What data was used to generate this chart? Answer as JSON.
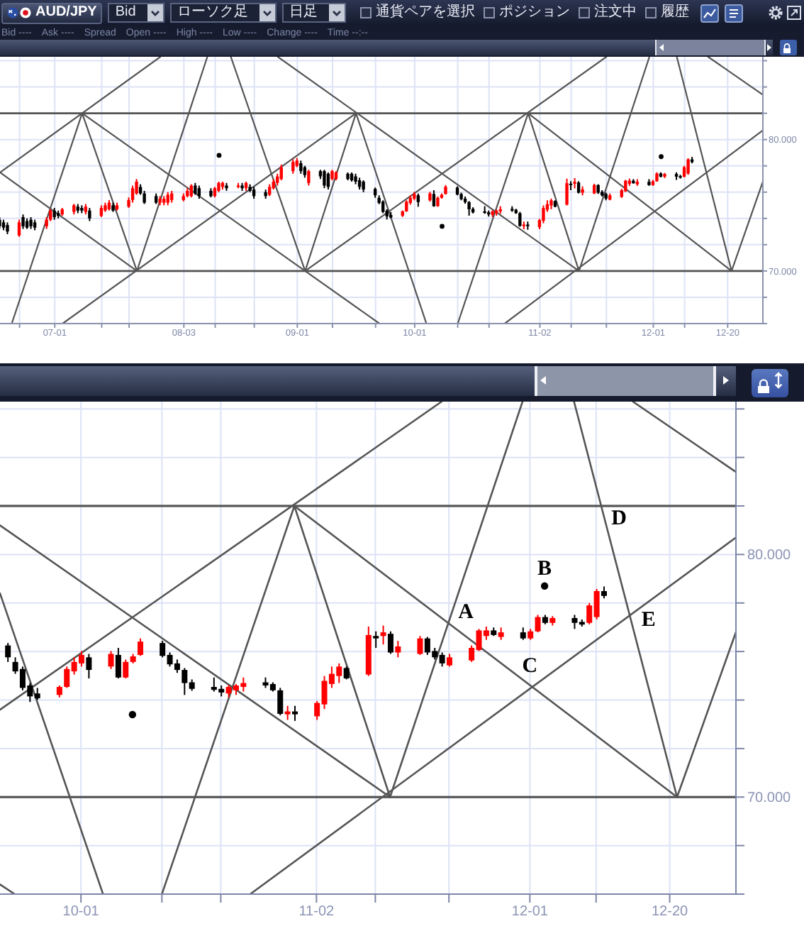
{
  "chart_data": [
    {
      "type": "candlestick",
      "annotations": [
        "AUD/JPY",
        "Bid",
        "ローソク足",
        "日足",
        "通貨ペアを選択",
        "ポジション",
        "注文中",
        "履歴",
        "Bid ----",
        "Ask ----",
        "Spread",
        "Open ----",
        "High ----",
        "Low ----",
        "Change ----",
        "Time --:--"
      ],
      "x": [
        "--06-17",
        "--06-18",
        "--06-19",
        "--06-22",
        "--06-23",
        "--06-24",
        "--06-25",
        "--06-26",
        "--06-29",
        "--06-30",
        "--07-01",
        "--07-02",
        "--07-03",
        "--07-06",
        "--07-07",
        "--07-08",
        "--07-09",
        "--07-10",
        "--07-13",
        "--07-14",
        "--07-15",
        "--07-16",
        "--07-17",
        "--07-20",
        "--07-21",
        "--07-22",
        "--07-23",
        "--07-24",
        "--07-27",
        "--07-28",
        "--07-29",
        "--07-30",
        "--07-31",
        "--08-03",
        "--08-04",
        "--08-05",
        "--08-06",
        "--08-07",
        "--08-10",
        "--08-11",
        "--08-12",
        "--08-13",
        "--08-14",
        "--08-17",
        "--08-18",
        "--08-19",
        "--08-20",
        "--08-21",
        "--08-24",
        "--08-25",
        "--08-26",
        "--08-27",
        "--08-28",
        "--08-31",
        "--09-01",
        "--09-02",
        "--09-03",
        "--09-04",
        "--09-07",
        "--09-08",
        "--09-09",
        "--09-10",
        "--09-11",
        "--09-14",
        "--09-15",
        "--09-16",
        "--09-17",
        "--09-18",
        "--09-21",
        "--09-22",
        "--09-23",
        "--09-24",
        "--09-25",
        "--09-28",
        "--09-29",
        "--09-30",
        "--10-01",
        "--10-02",
        "--10-05",
        "--10-06",
        "--10-07",
        "--10-08",
        "--10-09",
        "--10-12",
        "--10-13",
        "--10-14",
        "--10-15",
        "--10-16",
        "--10-19",
        "--10-20",
        "--10-21",
        "--10-22",
        "--10-23",
        "--10-26",
        "--10-27",
        "--10-28",
        "--10-29",
        "--10-30",
        "--11-02",
        "--11-03",
        "--11-04",
        "--11-05",
        "--11-06",
        "--11-09",
        "--11-10",
        "--11-11",
        "--11-12",
        "--11-13",
        "--11-16",
        "--11-17",
        "--11-18",
        "--11-19",
        "--11-20",
        "--11-23",
        "--11-24",
        "--11-25",
        "--11-26",
        "--11-27",
        "--11-30",
        "--12-01",
        "--12-02",
        "--12-03",
        "--12-04",
        "--12-07",
        "--12-08",
        "--12-09",
        "--12-10",
        "--12-11"
      ],
      "ohlc": [
        [
          73.9,
          74.1,
          73.2,
          73.4
        ],
        [
          73.7,
          73.9,
          73.1,
          73.3
        ],
        [
          73.5,
          73.7,
          72.8,
          73.0
        ],
        [
          72.7,
          73.9,
          72.6,
          73.7
        ],
        [
          74.1,
          74.3,
          73.2,
          73.4
        ],
        [
          73.8,
          74.0,
          73.2,
          73.3
        ],
        [
          73.9,
          74.1,
          73.2,
          73.4
        ],
        [
          73.7,
          73.9,
          73.1,
          73.3
        ],
        [
          73.4,
          74.1,
          73.2,
          73.9
        ],
        [
          73.9,
          74.7,
          73.8,
          74.6
        ],
        [
          74.6,
          74.8,
          73.9,
          74.1
        ],
        [
          74.4,
          74.6,
          74.0,
          74.2
        ],
        [
          74.3,
          74.8,
          74.2,
          74.7
        ],
        [
          74.5,
          75.1,
          74.3,
          75.0
        ],
        [
          74.9,
          75.1,
          74.4,
          74.6
        ],
        [
          74.8,
          75.0,
          74.4,
          74.6
        ],
        [
          74.5,
          75.1,
          74.3,
          74.9
        ],
        [
          74.6,
          74.8,
          73.8,
          74.0
        ],
        [
          74.2,
          75.0,
          74.1,
          74.8
        ],
        [
          74.6,
          75.2,
          74.5,
          75.0
        ],
        [
          74.7,
          75.4,
          74.6,
          75.2
        ],
        [
          75.0,
          75.2,
          74.5,
          74.6
        ],
        [
          74.7,
          75.2,
          74.6,
          75.0
        ],
        [
          74.9,
          75.6,
          74.8,
          75.4
        ],
        [
          75.4,
          76.5,
          75.2,
          76.3
        ],
        [
          75.9,
          77.0,
          75.8,
          76.8
        ],
        [
          76.4,
          76.6,
          75.8,
          75.9
        ],
        [
          75.9,
          76.1,
          75.1,
          75.2
        ],
        [
          75.7,
          75.9,
          75.1,
          75.2
        ],
        [
          75.2,
          75.7,
          75.0,
          75.5
        ],
        [
          75.2,
          75.7,
          75.0,
          75.5
        ],
        [
          75.2,
          76.0,
          75.0,
          75.8
        ],
        [
          75.4,
          76.1,
          75.2,
          75.9
        ],
        [
          75.4,
          75.9,
          75.3,
          75.7
        ],
        [
          75.7,
          76.3,
          75.6,
          76.1
        ],
        [
          75.7,
          76.6,
          75.6,
          76.5
        ],
        [
          76.5,
          76.7,
          75.8,
          75.9
        ],
        [
          76.3,
          76.5,
          75.5,
          75.7
        ],
        [
          76.1,
          76.3,
          75.6,
          75.7
        ],
        [
          75.7,
          76.4,
          75.6,
          76.3
        ],
        [
          76.1,
          76.8,
          76.0,
          76.7
        ],
        [
          76.4,
          76.8,
          76.2,
          76.7
        ],
        [
          76.5,
          76.7,
          76.1,
          76.3
        ],
        [
          76.4,
          76.7,
          76.3,
          76.5
        ],
        [
          76.5,
          76.7,
          76.1,
          76.3
        ],
        [
          76.3,
          76.8,
          76.1,
          76.7
        ],
        [
          76.4,
          76.6,
          76.0,
          76.1
        ],
        [
          76.2,
          76.4,
          75.5,
          75.7
        ],
        [
          76.0,
          76.2,
          75.5,
          75.7
        ],
        [
          75.8,
          76.6,
          75.7,
          76.4
        ],
        [
          76.3,
          77.0,
          76.2,
          76.8
        ],
        [
          76.7,
          77.4,
          76.5,
          77.2
        ],
        [
          77.0,
          78.1,
          76.9,
          77.9
        ],
        [
          77.6,
          78.5,
          77.4,
          78.3
        ],
        [
          78.0,
          78.6,
          77.9,
          78.4
        ],
        [
          78.2,
          78.4,
          77.4,
          77.6
        ],
        [
          77.9,
          78.0,
          77.1,
          77.3
        ],
        [
          76.7,
          77.7,
          76.5,
          77.6
        ],
        [
          77.6,
          77.7,
          77.0,
          77.2
        ],
        [
          77.6,
          77.7,
          76.3,
          76.5
        ],
        [
          77.4,
          77.5,
          76.2,
          76.4
        ],
        [
          77.0,
          77.7,
          76.9,
          77.6
        ],
        [
          77.0,
          77.6,
          76.9,
          77.5
        ],
        [
          77.4,
          77.5,
          76.9,
          77.0
        ],
        [
          77.4,
          77.5,
          76.8,
          76.9
        ],
        [
          77.2,
          77.4,
          76.6,
          76.8
        ],
        [
          76.9,
          77.1,
          76.2,
          76.4
        ],
        [
          76.8,
          76.9,
          76.0,
          76.2
        ],
        [
          76.25,
          76.35,
          75.57,
          75.76
        ],
        [
          75.57,
          75.76,
          75.08,
          75.18
        ],
        [
          75.28,
          75.38,
          74.4,
          74.5
        ],
        [
          74.6,
          74.7,
          73.92,
          74.15
        ],
        [
          74.27,
          74.5,
          74.01,
          74.07
        ],
        [
          74.21,
          74.6,
          74.11,
          74.54
        ],
        [
          74.54,
          75.38,
          74.5,
          75.28
        ],
        [
          75.18,
          75.76,
          75.05,
          75.57
        ],
        [
          75.51,
          76.02,
          75.38,
          75.86
        ],
        [
          75.76,
          75.9,
          74.89,
          75.24
        ],
        [
          75.38,
          76.02,
          75.28,
          75.9
        ],
        [
          75.86,
          76.15,
          74.89,
          74.93
        ],
        [
          74.93,
          75.67,
          74.89,
          75.57
        ],
        [
          75.57,
          75.9,
          75.51,
          75.8
        ],
        [
          75.86,
          76.54,
          75.82,
          76.41
        ],
        [
          76.35,
          76.44,
          75.76,
          75.82
        ],
        [
          75.86,
          75.96,
          75.38,
          75.47
        ],
        [
          75.51,
          75.67,
          75.12,
          75.24
        ],
        [
          75.24,
          75.32,
          74.21,
          74.7
        ],
        [
          74.73,
          74.85,
          74.38,
          74.46
        ],
        [
          74.54,
          74.93,
          74.35,
          74.42
        ],
        [
          74.46,
          74.6,
          74.15,
          74.31
        ],
        [
          74.27,
          74.62,
          74.11,
          74.54
        ],
        [
          74.4,
          74.66,
          74.21,
          74.6
        ],
        [
          74.54,
          74.93,
          74.35,
          74.7
        ],
        [
          74.73,
          74.93,
          74.5,
          74.6
        ],
        [
          74.66,
          74.73,
          74.35,
          74.4
        ],
        [
          74.4,
          74.5,
          73.37,
          73.43
        ],
        [
          73.41,
          73.76,
          73.18,
          73.53
        ],
        [
          73.53,
          73.76,
          73.14,
          73.41
        ],
        [
          73.33,
          73.96,
          73.18,
          73.88
        ],
        [
          73.82,
          74.99,
          73.63,
          74.79
        ],
        [
          74.66,
          75.38,
          74.5,
          75.08
        ],
        [
          74.99,
          75.51,
          74.7,
          75.38
        ],
        [
          75.32,
          75.38,
          74.85,
          74.89
        ],
        [
          75.05,
          77.03,
          74.99,
          76.68
        ],
        [
          76.64,
          76.83,
          76.15,
          76.54
        ],
        [
          76.64,
          77.07,
          76.29,
          76.79
        ],
        [
          76.73,
          76.83,
          75.9,
          75.96
        ],
        [
          75.96,
          76.44,
          75.76,
          76.21
        ],
        [
          75.9,
          76.64,
          75.86,
          76.54
        ],
        [
          76.54,
          76.6,
          75.86,
          75.96
        ],
        [
          76.02,
          76.15,
          75.67,
          75.76
        ],
        [
          75.86,
          75.96,
          75.38,
          75.51
        ],
        [
          75.43,
          75.9,
          75.38,
          75.76
        ],
        [
          75.63,
          76.25,
          75.57,
          76.15
        ],
        [
          76.06,
          76.93,
          76.02,
          76.87
        ],
        [
          76.64,
          77.03,
          76.48,
          76.87
        ],
        [
          76.87,
          76.99,
          76.64,
          76.68
        ],
        [
          76.6,
          76.99,
          76.48,
          76.79
        ],
        [
          76.79,
          76.99,
          76.48,
          76.54
        ],
        [
          76.54,
          76.93,
          76.48,
          76.83
        ],
        [
          76.83,
          77.51,
          76.79,
          77.42
        ],
        [
          77.42,
          77.51,
          77.12,
          77.18
        ],
        [
          77.18,
          77.46,
          77.07,
          77.38
        ],
        [
          77.38,
          77.51,
          76.93,
          77.18
        ],
        [
          77.22,
          77.32,
          77.03,
          77.11
        ],
        [
          77.18,
          78.0,
          77.12,
          77.9
        ],
        [
          77.42,
          78.58,
          77.32,
          78.49
        ],
        [
          78.49,
          78.68,
          78.19,
          78.29
        ]
      ],
      "colors": [
        "#000000",
        "#000000",
        "#000000",
        "#ff0000",
        "#000000",
        "#000000",
        "#000000",
        "#000000",
        "#ff0000",
        "#ff0000",
        "#000000",
        "#000000",
        "#ff0000",
        "#ff0000",
        "#000000",
        "#000000",
        "#ff0000",
        "#000000",
        "#ff0000",
        "#ff0000",
        "#ff0000",
        "#000000",
        "#ff0000",
        "#ff0000",
        "#ff0000",
        "#ff0000",
        "#000000",
        "#000000",
        "#000000",
        "#ff0000",
        "#ff0000",
        "#ff0000",
        "#ff0000",
        "#ff0000",
        "#ff0000",
        "#ff0000",
        "#000000",
        "#000000",
        "#000000",
        "#ff0000",
        "#ff0000",
        "#ff0000",
        "#000000",
        "#ff0000",
        "#000000",
        "#ff0000",
        "#000000",
        "#000000",
        "#000000",
        "#ff0000",
        "#ff0000",
        "#ff0000",
        "#ff0000",
        "#ff0000",
        "#ff0000",
        "#000000",
        "#000000",
        "#ff0000",
        "#000000",
        "#000000",
        "#000000",
        "#ff0000",
        "#ff0000",
        "#000000",
        "#000000",
        "#000000",
        "#000000",
        "#000000",
        "#000000",
        "#000000",
        "#000000",
        "#000000",
        "#000000",
        "#ff0000",
        "#ff0000",
        "#ff0000",
        "#ff0000",
        "#000000",
        "#ff0000",
        "#000000",
        "#ff0000",
        "#ff0000",
        "#ff0000",
        "#000000",
        "#000000",
        "#000000",
        "#000000",
        "#000000",
        "#000000",
        "#000000",
        "#ff0000",
        "#ff0000",
        "#ff0000",
        "#000000",
        "#000000",
        "#000000",
        "#ff0000",
        "#000000",
        "#ff0000",
        "#ff0000",
        "#ff0000",
        "#ff0000",
        "#000000",
        "#ff0000",
        "#000000",
        "#ff0000",
        "#000000",
        "#ff0000",
        "#ff0000",
        "#000000",
        "#000000",
        "#000000",
        "#ff0000",
        "#ff0000",
        "#ff0000",
        "#ff0000",
        "#000000",
        "#ff0000",
        "#000000",
        "#ff0000",
        "#ff0000",
        "#000000",
        "#ff0000",
        "#000000",
        "#000000",
        "#ff0000",
        "#ff0000",
        "#000000"
      ],
      "xlim": [
        "--06-17",
        "--12-29"
      ],
      "xticks": [
        {
          "value": "--06-22",
          "label": null
        },
        {
          "value": "--07-01",
          "label": "07-01"
        },
        {
          "value": "--07-13",
          "label": null
        },
        {
          "value": "--07-20",
          "label": null
        },
        {
          "value": "--08-03",
          "label": "08-03"
        },
        {
          "value": "--08-11",
          "label": null
        },
        {
          "value": "--08-21",
          "label": null
        },
        {
          "value": "--09-01",
          "label": "09-01"
        },
        {
          "value": "--09-10",
          "label": null
        },
        {
          "value": "--09-21",
          "label": null
        },
        {
          "value": "--10-01",
          "label": "10-01"
        },
        {
          "value": "--10-12",
          "label": null
        },
        {
          "value": "--10-20",
          "label": null
        },
        {
          "value": "--11-02",
          "label": "11-02"
        },
        {
          "value": "--11-10",
          "label": null
        },
        {
          "value": "--11-19",
          "label": null
        },
        {
          "value": "--12-01",
          "label": "12-01"
        },
        {
          "value": "--12-09",
          "label": null
        },
        {
          "value": "--12-20",
          "label": "12-20"
        }
      ],
      "ylim": [
        66,
        86.3
      ],
      "yticks": [
        {
          "value": 66,
          "label": null
        },
        {
          "value": 68,
          "label": null
        },
        {
          "value": 70,
          "label": "70.000"
        },
        {
          "value": 72,
          "label": null
        },
        {
          "value": 74,
          "label": null
        },
        {
          "value": 76,
          "label": null
        },
        {
          "value": 78,
          "label": null
        },
        {
          "value": 80,
          "label": "80.000"
        },
        {
          "value": 82,
          "label": null
        },
        {
          "value": 84,
          "label": null
        },
        {
          "value": 86,
          "label": null
        }
      ],
      "grid": true,
      "ref_lines": [
        {
          "axis": "y",
          "value": 82,
          "color": "#555555"
        },
        {
          "axis": "y",
          "value": 70,
          "color": "#555555"
        }
      ],
      "series": [
        {
          "type": "line",
          "color": "#555555",
          "x": [
            "--06-20",
            "--07-08"
          ],
          "values": [
            66,
            82
          ]
        },
        {
          "type": "line",
          "color": "#555555",
          "x": [
            "--07-08",
            "--07-22"
          ],
          "values": [
            82,
            70
          ]
        },
        {
          "type": "line",
          "color": "#555555",
          "x": [
            "--07-22",
            "--08-09"
          ],
          "values": [
            70,
            86.3
          ]
        },
        {
          "type": "line",
          "color": "#555555",
          "x": [
            "--08-15",
            "--09-03"
          ],
          "values": [
            86.3,
            70
          ]
        },
        {
          "type": "line",
          "color": "#555555",
          "x": [
            "--09-03",
            "--09-16"
          ],
          "values": [
            70,
            82
          ]
        },
        {
          "type": "line",
          "color": "#555555",
          "x": [
            "--09-16",
            "--10-04"
          ],
          "values": [
            82,
            66
          ]
        },
        {
          "type": "line",
          "color": "#555555",
          "x": [
            "--06-17",
            "--07-28"
          ],
          "values": [
            77.5,
            86.3
          ]
        },
        {
          "type": "line",
          "color": "#555555",
          "x": [
            "--06-17",
            "--07-22"
          ],
          "values": [
            77.5,
            70
          ]
        },
        {
          "type": "line",
          "color": "#555555",
          "x": [
            "--07-08",
            "--09-22"
          ],
          "values": [
            82,
            66
          ]
        },
        {
          "type": "line",
          "color": "#555555",
          "x": [
            "--07-03",
            "--09-16"
          ],
          "values": [
            66,
            82
          ]
        },
        {
          "type": "line",
          "color": "#555555",
          "x": [
            "--08-27",
            "--11-12"
          ],
          "values": [
            86.3,
            70
          ]
        },
        {
          "type": "line",
          "color": "#555555",
          "x": [
            "--09-03",
            "--11-19"
          ],
          "values": [
            70,
            86.3
          ]
        },
        {
          "type": "line",
          "color": "#555555",
          "x": [
            "--10-12",
            "--10-30"
          ],
          "values": [
            66,
            82
          ]
        },
        {
          "type": "line",
          "color": "#555555",
          "x": [
            "--10-30",
            "--11-12"
          ],
          "values": [
            82,
            70
          ]
        },
        {
          "type": "line",
          "color": "#555555",
          "x": [
            "--10-24",
            "--12-29"
          ],
          "values": [
            66,
            80.7
          ]
        },
        {
          "type": "line",
          "color": "#555555",
          "x": [
            "--11-12",
            "--11-30"
          ],
          "values": [
            70,
            86.3
          ]
        },
        {
          "type": "line",
          "color": "#555555",
          "x": [
            "--12-07",
            "--12-21"
          ],
          "values": [
            86.3,
            70
          ]
        },
        {
          "type": "line",
          "color": "#555555",
          "x": [
            "--10-30",
            "--12-21"
          ],
          "values": [
            82,
            70
          ]
        },
        {
          "type": "line",
          "color": "#555555",
          "x": [
            "--12-21",
            "--12-29"
          ],
          "values": [
            70,
            76.8
          ]
        },
        {
          "type": "line",
          "color": "#555555",
          "x": [
            "--12-15",
            "--12-29"
          ],
          "values": [
            86.3,
            83.4
          ]
        },
        {
          "type": "scatter",
          "color": "#000000",
          "marker": "circle",
          "x": [
            "--08-12",
            "--10-08",
            "--12-03"
          ],
          "values": [
            78.8,
            73.4,
            78.7
          ]
        }
      ]
    },
    {
      "type": "candlestick",
      "annotations": [
        {
          "text": "A",
          "x": "--11-20",
          "y": 77.15
        },
        {
          "text": "B",
          "x": "--12-03",
          "y": 78.7
        },
        {
          "text": "C",
          "x": "--12-01",
          "y": 74.62
        },
        {
          "text": "D",
          "x": "--12-11",
          "y": 82
        },
        {
          "text": "E",
          "x": "--12-15",
          "y": 77.58
        }
      ],
      "x": [
        "--09-21",
        "--09-22",
        "--09-23",
        "--09-24",
        "--09-25",
        "--09-28",
        "--09-29",
        "--09-30",
        "--10-01",
        "--10-02",
        "--10-05",
        "--10-06",
        "--10-07",
        "--10-08",
        "--10-09",
        "--10-12",
        "--10-13",
        "--10-14",
        "--10-15",
        "--10-16",
        "--10-19",
        "--10-20",
        "--10-21",
        "--10-22",
        "--10-23",
        "--10-26",
        "--10-27",
        "--10-28",
        "--10-29",
        "--10-30",
        "--11-02",
        "--11-03",
        "--11-04",
        "--11-05",
        "--11-06",
        "--11-09",
        "--11-10",
        "--11-11",
        "--11-12",
        "--11-13",
        "--11-16",
        "--11-17",
        "--11-18",
        "--11-19",
        "--11-20",
        "--11-23",
        "--11-24",
        "--11-25",
        "--11-26",
        "--11-27",
        "--11-30",
        "--12-01",
        "--12-02",
        "--12-03",
        "--12-04",
        "--12-07",
        "--12-08",
        "--12-09",
        "--12-10",
        "--12-11"
      ],
      "ohlc": [
        [
          76.25,
          76.35,
          75.57,
          75.76
        ],
        [
          75.57,
          75.76,
          75.08,
          75.18
        ],
        [
          75.28,
          75.38,
          74.4,
          74.5
        ],
        [
          74.6,
          74.7,
          73.92,
          74.15
        ],
        [
          74.27,
          74.5,
          74.01,
          74.07
        ],
        [
          74.21,
          74.6,
          74.11,
          74.54
        ],
        [
          74.54,
          75.38,
          74.5,
          75.28
        ],
        [
          75.18,
          75.76,
          75.05,
          75.57
        ],
        [
          75.51,
          76.02,
          75.38,
          75.86
        ],
        [
          75.76,
          75.9,
          74.89,
          75.24
        ],
        [
          75.38,
          76.02,
          75.28,
          75.9
        ],
        [
          75.86,
          76.15,
          74.89,
          74.93
        ],
        [
          74.93,
          75.67,
          74.89,
          75.57
        ],
        [
          75.57,
          75.9,
          75.51,
          75.8
        ],
        [
          75.86,
          76.54,
          75.82,
          76.41
        ],
        [
          76.35,
          76.44,
          75.76,
          75.82
        ],
        [
          75.86,
          75.96,
          75.38,
          75.47
        ],
        [
          75.51,
          75.67,
          75.12,
          75.24
        ],
        [
          75.24,
          75.32,
          74.21,
          74.7
        ],
        [
          74.73,
          74.85,
          74.38,
          74.46
        ],
        [
          74.54,
          74.93,
          74.35,
          74.42
        ],
        [
          74.46,
          74.6,
          74.15,
          74.31
        ],
        [
          74.27,
          74.62,
          74.11,
          74.54
        ],
        [
          74.4,
          74.66,
          74.21,
          74.6
        ],
        [
          74.54,
          74.93,
          74.35,
          74.7
        ],
        [
          74.73,
          74.93,
          74.5,
          74.6
        ],
        [
          74.66,
          74.73,
          74.35,
          74.4
        ],
        [
          74.4,
          74.5,
          73.37,
          73.43
        ],
        [
          73.41,
          73.76,
          73.18,
          73.53
        ],
        [
          73.53,
          73.76,
          73.14,
          73.41
        ],
        [
          73.33,
          73.96,
          73.18,
          73.88
        ],
        [
          73.82,
          74.99,
          73.63,
          74.79
        ],
        [
          74.66,
          75.38,
          74.5,
          75.08
        ],
        [
          74.99,
          75.51,
          74.7,
          75.38
        ],
        [
          75.32,
          75.38,
          74.85,
          74.89
        ],
        [
          75.05,
          77.03,
          74.99,
          76.68
        ],
        [
          76.64,
          76.83,
          76.15,
          76.54
        ],
        [
          76.64,
          77.07,
          76.29,
          76.79
        ],
        [
          76.73,
          76.83,
          75.9,
          75.96
        ],
        [
          75.96,
          76.44,
          75.76,
          76.21
        ],
        [
          75.9,
          76.64,
          75.86,
          76.54
        ],
        [
          76.54,
          76.6,
          75.86,
          75.96
        ],
        [
          76.02,
          76.15,
          75.67,
          75.76
        ],
        [
          75.86,
          75.96,
          75.38,
          75.51
        ],
        [
          75.43,
          75.9,
          75.38,
          75.76
        ],
        [
          75.63,
          76.25,
          75.57,
          76.15
        ],
        [
          76.06,
          76.93,
          76.02,
          76.87
        ],
        [
          76.64,
          77.03,
          76.48,
          76.87
        ],
        [
          76.87,
          76.99,
          76.64,
          76.68
        ],
        [
          76.6,
          76.99,
          76.48,
          76.79
        ],
        [
          76.79,
          76.99,
          76.48,
          76.54
        ],
        [
          76.54,
          76.93,
          76.48,
          76.83
        ],
        [
          76.83,
          77.51,
          76.79,
          77.42
        ],
        [
          77.42,
          77.51,
          77.12,
          77.18
        ],
        [
          77.18,
          77.46,
          77.07,
          77.38
        ],
        [
          77.38,
          77.51,
          76.93,
          77.18
        ],
        [
          77.22,
          77.32,
          77.03,
          77.11
        ],
        [
          77.18,
          78.0,
          77.12,
          77.9
        ],
        [
          77.42,
          78.58,
          77.32,
          78.49
        ],
        [
          78.49,
          78.68,
          78.19,
          78.29
        ]
      ],
      "colors": [
        "#000000",
        "#000000",
        "#000000",
        "#000000",
        "#000000",
        "#ff0000",
        "#ff0000",
        "#ff0000",
        "#ff0000",
        "#000000",
        "#ff0000",
        "#000000",
        "#ff0000",
        "#ff0000",
        "#ff0000",
        "#000000",
        "#000000",
        "#000000",
        "#000000",
        "#000000",
        "#000000",
        "#000000",
        "#ff0000",
        "#ff0000",
        "#ff0000",
        "#000000",
        "#000000",
        "#000000",
        "#ff0000",
        "#000000",
        "#ff0000",
        "#ff0000",
        "#ff0000",
        "#ff0000",
        "#000000",
        "#ff0000",
        "#000000",
        "#ff0000",
        "#000000",
        "#ff0000",
        "#ff0000",
        "#000000",
        "#000000",
        "#000000",
        "#ff0000",
        "#ff0000",
        "#ff0000",
        "#ff0000",
        "#000000",
        "#ff0000",
        "#000000",
        "#ff0000",
        "#ff0000",
        "#000000",
        "#ff0000",
        "#000000",
        "#000000",
        "#ff0000",
        "#ff0000",
        "#000000"
      ],
      "xlim": [
        "--09-20",
        "--12-29"
      ],
      "xticks": [
        {
          "value": "--10-01",
          "label": "10-01"
        },
        {
          "value": "--10-12",
          "label": null
        },
        {
          "value": "--10-20",
          "label": null
        },
        {
          "value": "--11-02",
          "label": "11-02"
        },
        {
          "value": "--11-10",
          "label": null
        },
        {
          "value": "--11-20",
          "label": null
        },
        {
          "value": "--12-01",
          "label": "12-01"
        },
        {
          "value": "--12-10",
          "label": null
        },
        {
          "value": "--12-20",
          "label": "12-20"
        }
      ],
      "ylim": [
        66,
        86.3
      ],
      "yticks": [
        {
          "value": 66,
          "label": null
        },
        {
          "value": 68,
          "label": null
        },
        {
          "value": 70,
          "label": "70.000"
        },
        {
          "value": 72,
          "label": null
        },
        {
          "value": 74,
          "label": null
        },
        {
          "value": 76,
          "label": null
        },
        {
          "value": 78,
          "label": null
        },
        {
          "value": 80,
          "label": "80.000"
        },
        {
          "value": 82,
          "label": null
        },
        {
          "value": 84,
          "label": null
        },
        {
          "value": 86,
          "label": null
        }
      ],
      "grid": true,
      "ref_lines": [
        {
          "axis": "y",
          "value": 82,
          "color": "#555555"
        },
        {
          "axis": "y",
          "value": 70,
          "color": "#555555"
        }
      ],
      "series": [
        {
          "type": "line",
          "color": "#555555",
          "x": [
            "--09-20",
            "--09-22"
          ],
          "values": [
            66.4,
            66
          ]
        },
        {
          "type": "line",
          "color": "#555555",
          "x": [
            "--09-20",
            "--10-04"
          ],
          "values": [
            78.4,
            66
          ]
        },
        {
          "type": "line",
          "color": "#555555",
          "x": [
            "--09-20",
            "--11-12"
          ],
          "values": [
            81.2,
            70
          ]
        },
        {
          "type": "line",
          "color": "#555555",
          "x": [
            "--09-20",
            "--11-19"
          ],
          "values": [
            73.6,
            86.3
          ]
        },
        {
          "type": "line",
          "color": "#555555",
          "x": [
            "--10-12",
            "--10-30"
          ],
          "values": [
            66,
            82
          ]
        },
        {
          "type": "line",
          "color": "#555555",
          "x": [
            "--10-30",
            "--11-12"
          ],
          "values": [
            82,
            70
          ]
        },
        {
          "type": "line",
          "color": "#555555",
          "x": [
            "--10-24",
            "--12-29"
          ],
          "values": [
            66,
            80.7
          ]
        },
        {
          "type": "line",
          "color": "#555555",
          "x": [
            "--11-12",
            "--11-30"
          ],
          "values": [
            70,
            86.3
          ]
        },
        {
          "type": "line",
          "color": "#555555",
          "x": [
            "--12-07",
            "--12-21"
          ],
          "values": [
            86.3,
            70
          ]
        },
        {
          "type": "line",
          "color": "#555555",
          "x": [
            "--10-30",
            "--12-21"
          ],
          "values": [
            82,
            70
          ]
        },
        {
          "type": "line",
          "color": "#555555",
          "x": [
            "--12-21",
            "--12-29"
          ],
          "values": [
            70,
            76.8
          ]
        },
        {
          "type": "line",
          "color": "#555555",
          "x": [
            "--12-15",
            "--12-29"
          ],
          "values": [
            86.3,
            83.4
          ]
        },
        {
          "type": "scatter",
          "color": "#000000",
          "marker": "circle",
          "x": [
            "--10-08",
            "--12-03"
          ],
          "values": [
            73.4,
            78.7
          ]
        }
      ]
    }
  ]
}
